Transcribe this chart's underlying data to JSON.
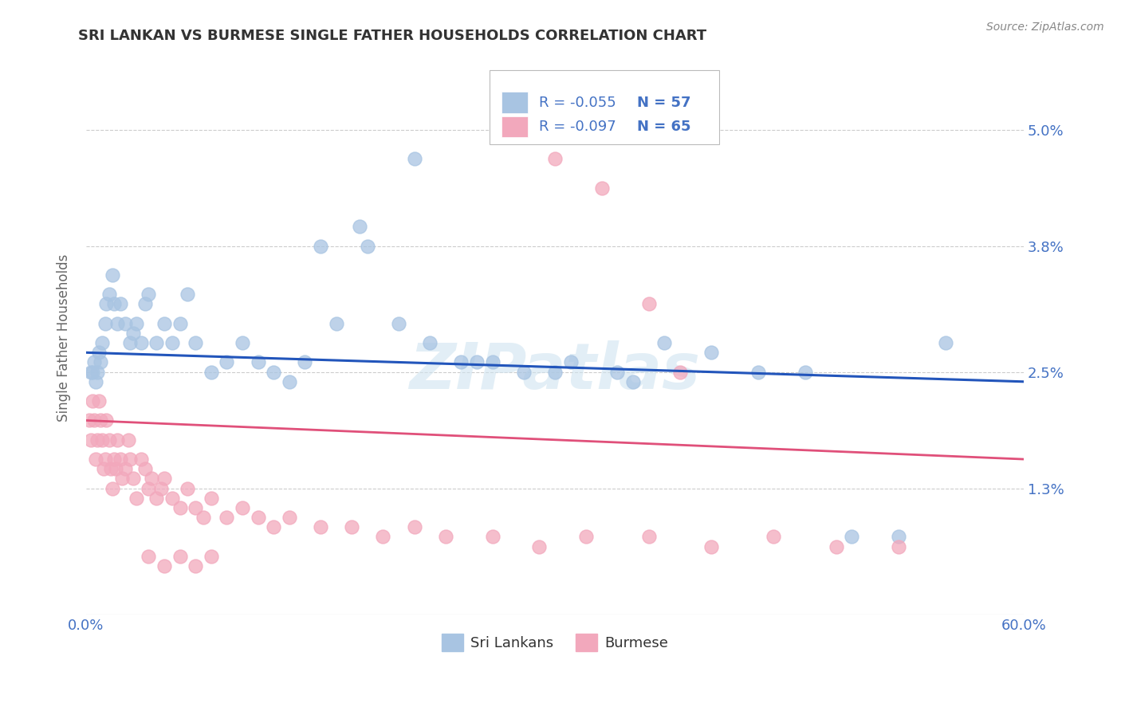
{
  "title": "SRI LANKAN VS BURMESE SINGLE FATHER HOUSEHOLDS CORRELATION CHART",
  "source": "Source: ZipAtlas.com",
  "ylabel": "Single Father Households",
  "yticks": [
    "1.3%",
    "2.5%",
    "3.8%",
    "5.0%"
  ],
  "ytick_vals": [
    0.013,
    0.025,
    0.038,
    0.05
  ],
  "xmin": 0.0,
  "xmax": 0.6,
  "ymin": 0.0,
  "ymax": 0.057,
  "sri_lankan_color": "#a8c4e2",
  "burmese_color": "#f2a8bc",
  "sri_lankan_line_color": "#2255bb",
  "burmese_line_color": "#e0507a",
  "sri_lankan_R": -0.055,
  "sri_lankan_N": 57,
  "burmese_R": -0.097,
  "burmese_N": 65,
  "legend_label_1": "Sri Lankans",
  "legend_label_2": "Burmese",
  "watermark": "ZIPatlas",
  "sri_lankans_x": [
    0.003,
    0.004,
    0.005,
    0.006,
    0.007,
    0.008,
    0.009,
    0.01,
    0.012,
    0.013,
    0.015,
    0.017,
    0.018,
    0.02,
    0.022,
    0.025,
    0.028,
    0.03,
    0.032,
    0.035,
    0.038,
    0.04,
    0.045,
    0.05,
    0.055,
    0.06,
    0.065,
    0.07,
    0.08,
    0.09,
    0.1,
    0.11,
    0.12,
    0.13,
    0.14,
    0.16,
    0.175,
    0.2,
    0.22,
    0.24,
    0.26,
    0.28,
    0.31,
    0.34,
    0.37,
    0.4,
    0.43,
    0.46,
    0.49,
    0.52,
    0.55,
    0.3,
    0.35,
    0.25,
    0.15,
    0.18,
    0.21
  ],
  "sri_lankans_y": [
    0.025,
    0.025,
    0.026,
    0.024,
    0.025,
    0.027,
    0.026,
    0.028,
    0.03,
    0.032,
    0.033,
    0.035,
    0.032,
    0.03,
    0.032,
    0.03,
    0.028,
    0.029,
    0.03,
    0.028,
    0.032,
    0.033,
    0.028,
    0.03,
    0.028,
    0.03,
    0.033,
    0.028,
    0.025,
    0.026,
    0.028,
    0.026,
    0.025,
    0.024,
    0.026,
    0.03,
    0.04,
    0.03,
    0.028,
    0.026,
    0.026,
    0.025,
    0.026,
    0.025,
    0.028,
    0.027,
    0.025,
    0.025,
    0.008,
    0.008,
    0.028,
    0.025,
    0.024,
    0.026,
    0.038,
    0.038,
    0.047
  ],
  "burmese_x": [
    0.002,
    0.003,
    0.004,
    0.005,
    0.006,
    0.007,
    0.008,
    0.009,
    0.01,
    0.011,
    0.012,
    0.013,
    0.015,
    0.016,
    0.017,
    0.018,
    0.019,
    0.02,
    0.022,
    0.023,
    0.025,
    0.027,
    0.028,
    0.03,
    0.032,
    0.035,
    0.038,
    0.04,
    0.042,
    0.045,
    0.048,
    0.05,
    0.055,
    0.06,
    0.065,
    0.07,
    0.075,
    0.08,
    0.09,
    0.1,
    0.11,
    0.12,
    0.13,
    0.15,
    0.17,
    0.19,
    0.21,
    0.23,
    0.26,
    0.29,
    0.32,
    0.36,
    0.4,
    0.44,
    0.48,
    0.52,
    0.3,
    0.33,
    0.36,
    0.38,
    0.04,
    0.05,
    0.06,
    0.07,
    0.08
  ],
  "burmese_y": [
    0.02,
    0.018,
    0.022,
    0.02,
    0.016,
    0.018,
    0.022,
    0.02,
    0.018,
    0.015,
    0.016,
    0.02,
    0.018,
    0.015,
    0.013,
    0.016,
    0.015,
    0.018,
    0.016,
    0.014,
    0.015,
    0.018,
    0.016,
    0.014,
    0.012,
    0.016,
    0.015,
    0.013,
    0.014,
    0.012,
    0.013,
    0.014,
    0.012,
    0.011,
    0.013,
    0.011,
    0.01,
    0.012,
    0.01,
    0.011,
    0.01,
    0.009,
    0.01,
    0.009,
    0.009,
    0.008,
    0.009,
    0.008,
    0.008,
    0.007,
    0.008,
    0.008,
    0.007,
    0.008,
    0.007,
    0.007,
    0.047,
    0.044,
    0.032,
    0.025,
    0.006,
    0.005,
    0.006,
    0.005,
    0.006
  ]
}
